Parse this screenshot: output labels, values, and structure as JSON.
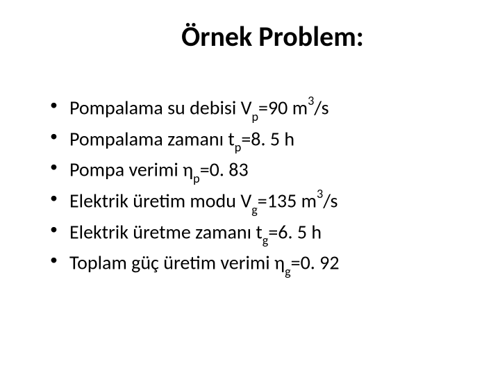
{
  "slide": {
    "title": "Örnek Problem:",
    "background_color": "#ffffff",
    "text_color": "#000000",
    "title_fontsize": 40,
    "body_fontsize": 28,
    "font_family": "Calibri",
    "bullets": [
      {
        "prefix": "Pompalama su debisi V",
        "sub": "p",
        "mid": "=90 m",
        "sup": "3",
        "suffix": "/s"
      },
      {
        "prefix": "Pompalama zamanı t",
        "sub": "p",
        "mid": "=8. 5 h",
        "sup": "",
        "suffix": ""
      },
      {
        "prefix": "Pompa verimi η",
        "sub": "p",
        "mid": "=0. 83",
        "sup": "",
        "suffix": ""
      },
      {
        "prefix": "Elektrik üretim modu V",
        "sub": "g",
        "mid": "=135 m",
        "sup": "3",
        "suffix": "/s"
      },
      {
        "prefix": "Elektrik üretme zamanı t",
        "sub": "g",
        "mid": "=6. 5 h",
        "sup": "",
        "suffix": ""
      },
      {
        "prefix": "Toplam güç üretim verimi η",
        "sub": "g",
        "mid": "=0. 92",
        "sup": "",
        "suffix": ""
      }
    ]
  }
}
